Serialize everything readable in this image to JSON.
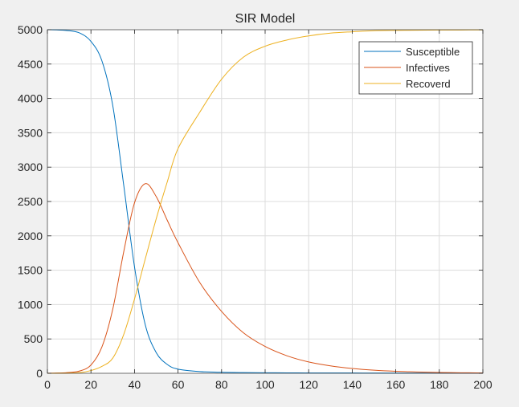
{
  "chart_data": {
    "type": "line",
    "title": "SIR Model",
    "xlabel": "",
    "ylabel": "",
    "xlim": [
      0,
      200
    ],
    "ylim": [
      0,
      5000
    ],
    "xticks": [
      0,
      20,
      40,
      60,
      80,
      100,
      120,
      140,
      160,
      180,
      200
    ],
    "yticks": [
      0,
      500,
      1000,
      1500,
      2000,
      2500,
      3000,
      3500,
      4000,
      4500,
      5000
    ],
    "grid": true,
    "legend_position": "top-right",
    "x": [
      0,
      5,
      10,
      15,
      20,
      25,
      30,
      35,
      40,
      45,
      50,
      55,
      60,
      70,
      80,
      90,
      100,
      110,
      120,
      130,
      140,
      150,
      160,
      170,
      180,
      190,
      200
    ],
    "series": [
      {
        "name": "Susceptible",
        "color": "#0072BD",
        "values": [
          5000,
          4996,
          4985,
          4950,
          4830,
          4550,
          3900,
          2750,
          1550,
          700,
          300,
          130,
          60,
          25,
          14,
          10,
          8,
          6,
          5,
          4,
          4,
          3,
          3,
          3,
          3,
          3,
          3
        ]
      },
      {
        "name": "Infectives",
        "color": "#D95319",
        "values": [
          1,
          4,
          12,
          35,
          120,
          380,
          930,
          1760,
          2480,
          2760,
          2570,
          2230,
          1900,
          1320,
          900,
          590,
          390,
          255,
          165,
          108,
          70,
          45,
          29,
          19,
          12,
          8,
          5
        ]
      },
      {
        "name": "Recoverd",
        "color": "#EDB120",
        "values": [
          0,
          1,
          3,
          10,
          40,
          100,
          220,
          560,
          1080,
          1670,
          2250,
          2780,
          3270,
          3800,
          4280,
          4600,
          4760,
          4850,
          4910,
          4950,
          4970,
          4985,
          4990,
          4993,
          4995,
          4996,
          4997
        ]
      }
    ]
  }
}
